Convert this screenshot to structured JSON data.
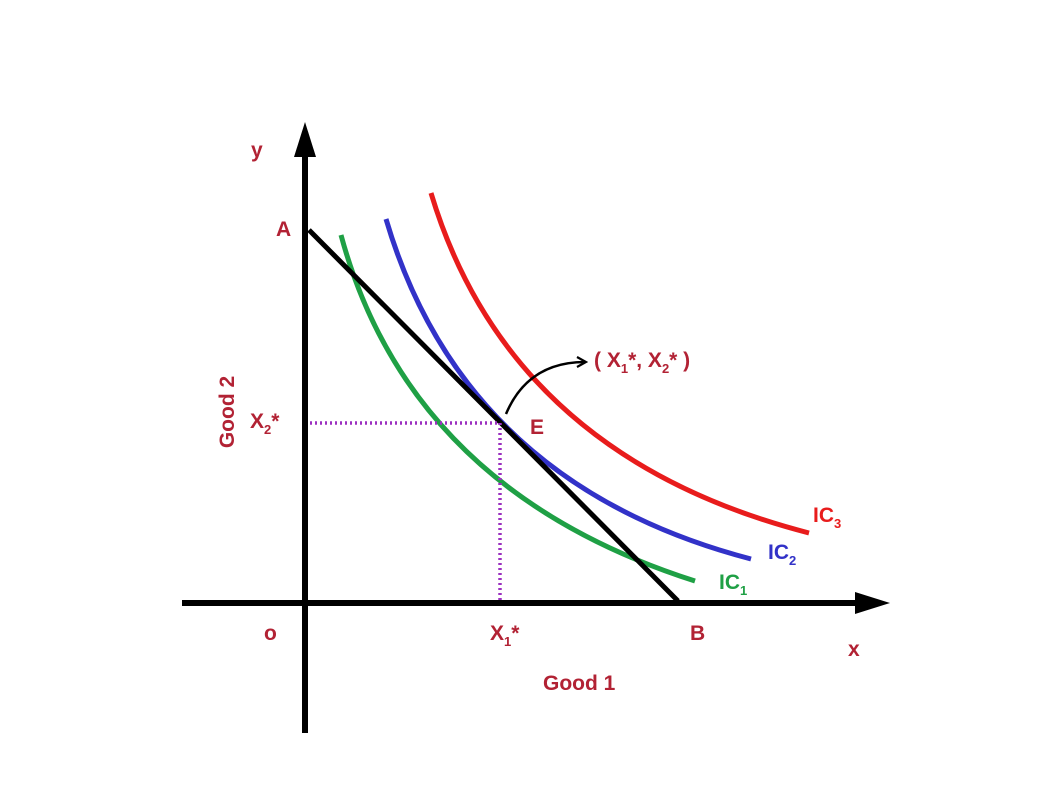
{
  "labels": {
    "y_axis": "y",
    "x_axis": "x",
    "origin": "o",
    "point_a": "A",
    "point_b": "B",
    "point_e": "E",
    "y_title": "Good 2",
    "x_title": "Good 1",
    "x2_star": {
      "main": "X",
      "sub": "2",
      "suffix": "*"
    },
    "x1_star": {
      "main": "X",
      "sub": "1",
      "suffix": "*"
    },
    "optimum": {
      "open": "( X",
      "sub1": "1",
      "mid": "*, X",
      "sub2": "2",
      "close": "* )"
    },
    "ic1": {
      "main": "IC",
      "sub": "1"
    },
    "ic2": {
      "main": "IC",
      "sub": "2"
    },
    "ic3": {
      "main": "IC",
      "sub": "3"
    }
  },
  "colors": {
    "axis": "#000000",
    "budget_line": "#000000",
    "ic1": "#1fa045",
    "ic2": "#3232c8",
    "ic3": "#e81c1c",
    "guide": "#9b30c0",
    "label": "#b22234"
  }
}
